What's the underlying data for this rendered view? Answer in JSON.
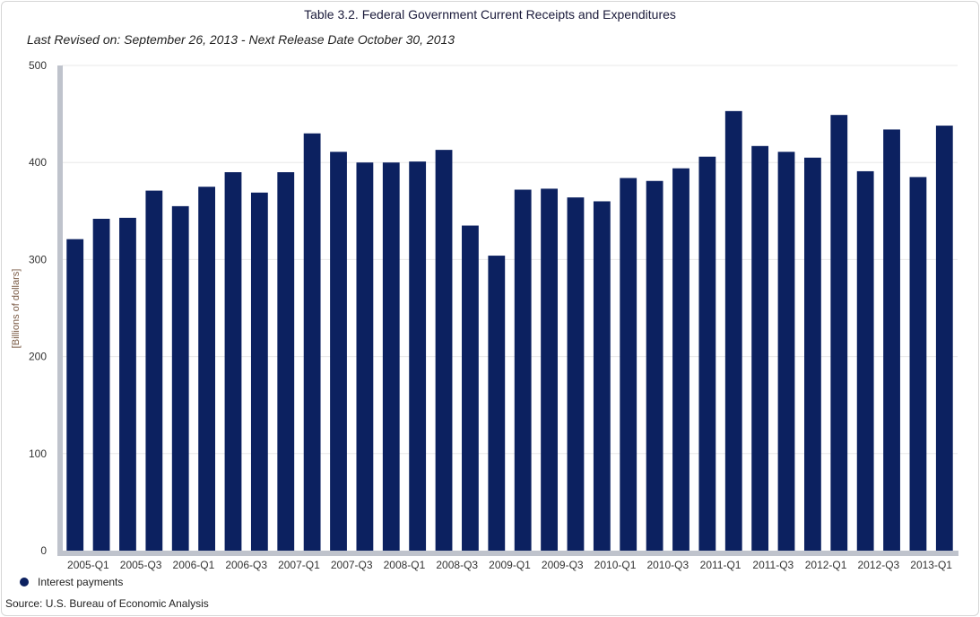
{
  "chart_data": {
    "type": "bar",
    "title": "Table 3.2. Federal Government Current Receipts and Expenditures",
    "subtitle": "Last Revised on: September 26, 2013 - Next Release Date October 30, 2013",
    "ylabel": "[Billions of dollars]",
    "xlabel": "",
    "ylim": [
      0,
      500
    ],
    "yticks": [
      0,
      100,
      200,
      300,
      400,
      500
    ],
    "grid": true,
    "legend_position": "bottom-left",
    "categories": [
      "2005-Q1",
      "2005-Q2",
      "2005-Q3",
      "2005-Q4",
      "2006-Q1",
      "2006-Q2",
      "2006-Q3",
      "2006-Q4",
      "2007-Q1",
      "2007-Q2",
      "2007-Q3",
      "2007-Q4",
      "2008-Q1",
      "2008-Q2",
      "2008-Q3",
      "2008-Q4",
      "2009-Q1",
      "2009-Q2",
      "2009-Q3",
      "2009-Q4",
      "2010-Q1",
      "2010-Q2",
      "2010-Q3",
      "2010-Q4",
      "2011-Q1",
      "2011-Q2",
      "2011-Q3",
      "2011-Q4",
      "2012-Q1",
      "2012-Q2",
      "2012-Q3",
      "2012-Q4",
      "2013-Q1",
      "2013-Q2"
    ],
    "xtick_labels": [
      "2005-Q1",
      "",
      "2005-Q3",
      "",
      "2006-Q1",
      "",
      "2006-Q3",
      "",
      "2007-Q1",
      "",
      "2007-Q3",
      "",
      "2008-Q1",
      "",
      "2008-Q3",
      "",
      "2009-Q1",
      "",
      "2009-Q3",
      "",
      "2010-Q1",
      "",
      "2010-Q3",
      "",
      "2011-Q1",
      "",
      "2011-Q3",
      "",
      "2012-Q1",
      "",
      "2012-Q3",
      "",
      "2013-Q1",
      ""
    ],
    "series": [
      {
        "name": "Interest payments",
        "color": "#0c2160",
        "values": [
          321,
          342,
          343,
          371,
          355,
          375,
          390,
          369,
          390,
          430,
          411,
          400,
          400,
          401,
          413,
          335,
          304,
          372,
          373,
          364,
          360,
          384,
          381,
          394,
          406,
          453,
          417,
          411,
          405,
          449,
          391,
          434,
          385,
          438
        ]
      }
    ]
  },
  "footer": {
    "legend_label": "Interest payments",
    "source": "Source: U.S. Bureau of Economic Analysis"
  },
  "colors": {
    "bar": "#0c2160",
    "axis_band": "#bfc3cc",
    "grid": "#e8e8e8"
  }
}
